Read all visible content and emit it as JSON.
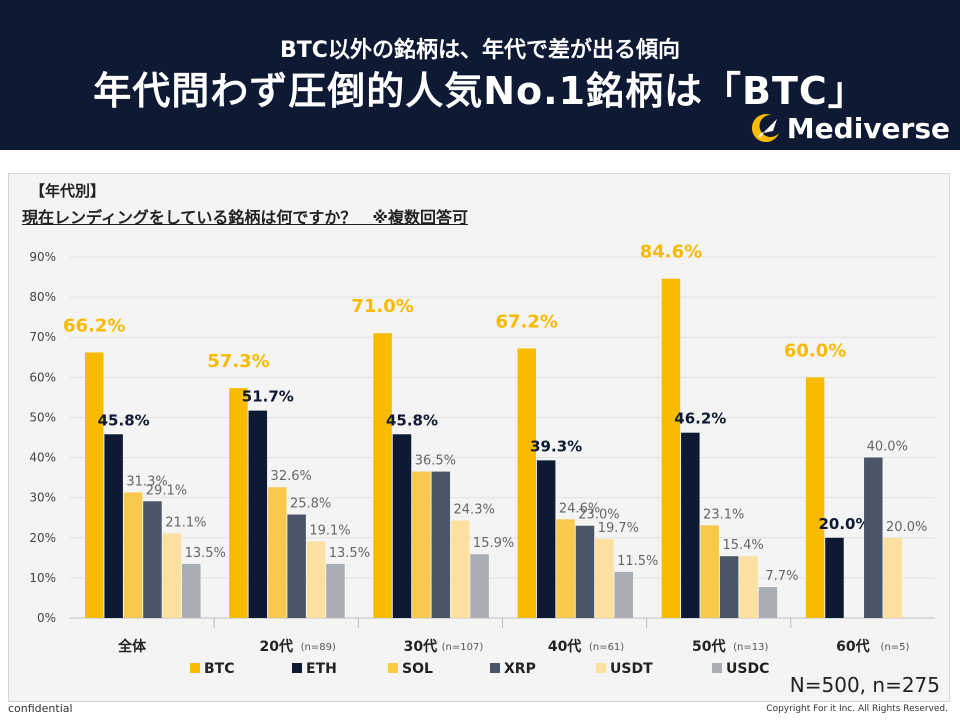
{
  "header": {
    "subtitle": "BTC以外の銘柄は、年代で差が出る傾向",
    "title": "年代問わず圧倒的人気No.1銘柄は「BTC」",
    "logo_text": "Mediverse"
  },
  "panel": {
    "category_label": "【年代別】",
    "question": "現在レンディングをしている銘柄は何ですか？　※複数回答可"
  },
  "footer": {
    "sample_size": "N=500, n=275",
    "confidential": "confidential",
    "copyright": "Copyright For it Inc. All Rights Reserved."
  },
  "colors": {
    "BTC": "#f9bb00",
    "ETH": "#0e1a33",
    "SOL": "#f9c94d",
    "XRP": "#4a5568",
    "USDT": "#fbe0a0",
    "USDC": "#a9adb4"
  },
  "chart_data": {
    "type": "bar",
    "title": "現在レンディングをしている銘柄は何ですか？　※複数回答可",
    "categories": [
      "全体",
      "20代",
      "30代",
      "40代",
      "50代",
      "60代"
    ],
    "category_notes": [
      "",
      "(n=89)",
      "(n=107)",
      "(n=61)",
      "(n=13)",
      "(n=5)"
    ],
    "series": [
      {
        "name": "BTC",
        "values": [
          66.2,
          57.3,
          71.0,
          67.2,
          84.6,
          60.0
        ],
        "labels": [
          "66.2%",
          "57.3%",
          "71.0%",
          "67.2%",
          "84.6%",
          "60.0%"
        ]
      },
      {
        "name": "ETH",
        "values": [
          45.8,
          51.7,
          45.8,
          39.3,
          46.2,
          20.0
        ],
        "labels": [
          "45.8%",
          "51.7%",
          "45.8%",
          "39.3%",
          "46.2%",
          "20.0%"
        ]
      },
      {
        "name": "SOL",
        "values": [
          31.3,
          32.6,
          36.5,
          24.6,
          23.1,
          0
        ],
        "labels": [
          "31.3%",
          "32.6%",
          "36.5%",
          "24.6%",
          "23.1%",
          ""
        ]
      },
      {
        "name": "XRP",
        "values": [
          29.1,
          25.8,
          36.5,
          23.0,
          15.4,
          40.0
        ],
        "labels": [
          "29.1%",
          "25.8%",
          "",
          "23.0%",
          "15.4%",
          "40.0%"
        ]
      },
      {
        "name": "USDT",
        "values": [
          21.1,
          19.1,
          24.3,
          19.7,
          15.4,
          20.0
        ],
        "labels": [
          "21.1%",
          "19.1%",
          "24.3%",
          "19.7%",
          "",
          "20.0%"
        ]
      },
      {
        "name": "USDC",
        "values": [
          13.5,
          13.5,
          15.9,
          11.5,
          7.7,
          0
        ],
        "labels": [
          "13.5%",
          "13.5%",
          "15.9%",
          "11.5%",
          "7.7%",
          ""
        ]
      }
    ],
    "ylim": [
      0,
      90
    ],
    "yticks": [
      "0%",
      "10%",
      "20%",
      "30%",
      "40%",
      "50%",
      "60%",
      "70%",
      "80%",
      "90%"
    ],
    "xlabel": "",
    "ylabel": "",
    "legend": "bottom"
  }
}
